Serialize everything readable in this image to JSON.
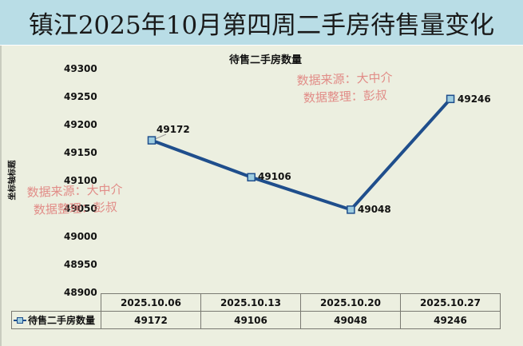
{
  "header": {
    "title": "镇江2025年10月第四周二手房待售量变化"
  },
  "watermarks": [
    {
      "line1": "数据来源：大中介",
      "line2": "数据整理：彭叔"
    },
    {
      "line1": "数据来源：大中介",
      "line2": "数据整理：彭叔"
    }
  ],
  "colors": {
    "banner_bg": "#b9dde6",
    "chart_bg": "#ecefe0",
    "line": "#1f4e8c",
    "marker_fill": "#9ecde0",
    "watermark": "#e07b78"
  },
  "chart_data": {
    "type": "line",
    "title": "待售二手房数量",
    "xlabel": "",
    "ylabel": "坐标轴标题",
    "categories": [
      "2025.10.06",
      "2025.10.13",
      "2025.10.20",
      "2025.10.27"
    ],
    "series": [
      {
        "name": "待售二手房数量",
        "values": [
          49172,
          49106,
          49048,
          49246
        ]
      }
    ],
    "ylim": [
      48900,
      49300
    ],
    "yticks": [
      "49300",
      "49250",
      "49200",
      "49150",
      "49100",
      "49050",
      "49000",
      "48950",
      "48900"
    ],
    "data_labels": [
      "49172",
      "49106",
      "49048",
      "49246"
    ],
    "grid": false,
    "legend_position": "data-table",
    "data_table": true
  }
}
